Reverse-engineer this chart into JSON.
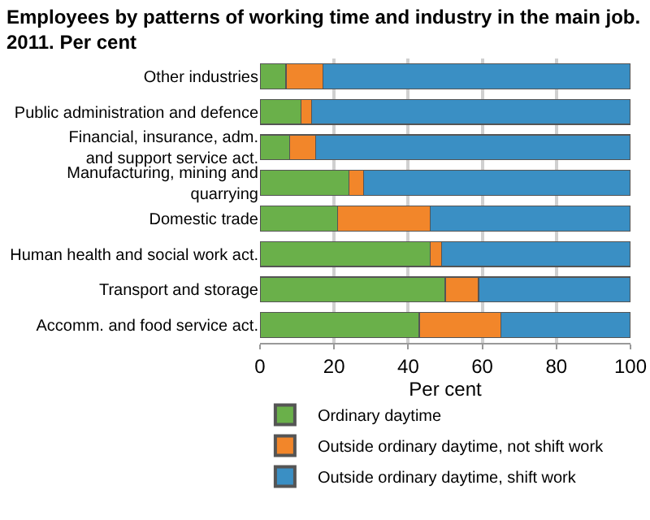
{
  "chart_data": {
    "type": "bar",
    "orientation": "horizontal",
    "stacked": true,
    "title": "Employees by patterns of working time and industry in the main job. 2011. Per cent",
    "xlabel": "Per cent",
    "categories": [
      "Other industries",
      "Public administration and defence",
      "Financial, insurance, adm. and support service act.",
      "Manufacturing, mining and quarrying",
      "Domestic trade",
      "Human health and social work act.",
      "Transport and storage",
      "Accomm. and food service act."
    ],
    "series": [
      {
        "name": "Ordinary daytime",
        "color": "#6ab04a",
        "values": [
          7,
          11,
          8,
          24,
          21,
          46,
          50,
          43
        ]
      },
      {
        "name": "Outside ordinary daytime, not shift work",
        "color": "#f2862a",
        "values": [
          10,
          3,
          7,
          4,
          25,
          3,
          9,
          22
        ]
      },
      {
        "name": "Outside ordinary daytime, shift work",
        "color": "#3a8fc4",
        "values": [
          83,
          86,
          85,
          72,
          54,
          51,
          41,
          35
        ]
      }
    ],
    "xlim": [
      0,
      100
    ],
    "xticks": [
      0,
      20,
      40,
      60,
      80,
      100
    ],
    "grid": "x",
    "legend": "bottom"
  }
}
